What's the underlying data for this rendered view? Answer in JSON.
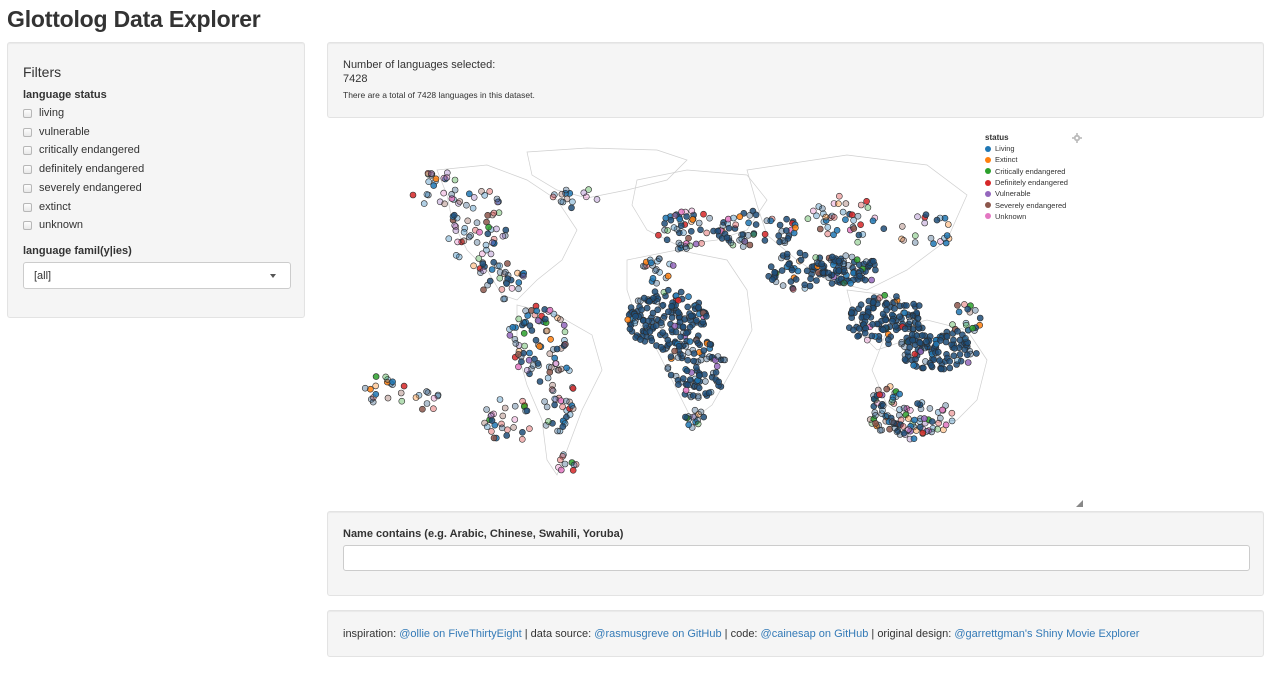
{
  "app": {
    "title": "Glottolog Data Explorer"
  },
  "filters": {
    "title": "Filters",
    "status_label": "language status",
    "status_options": [
      {
        "label": "living",
        "checked": false
      },
      {
        "label": "vulnerable",
        "checked": false
      },
      {
        "label": "critically endangered",
        "checked": false
      },
      {
        "label": "definitely endangered",
        "checked": false
      },
      {
        "label": "severely endangered",
        "checked": false
      },
      {
        "label": "extinct",
        "checked": false
      },
      {
        "label": "unknown",
        "checked": false
      }
    ],
    "family_label": "language famil(y|ies)",
    "family_selected": "[all]"
  },
  "summary": {
    "count_label": "Number of languages selected:",
    "count_value": "7428",
    "total_note": "There are a total of 7428 languages in this dataset."
  },
  "legend": {
    "title": "status",
    "items": [
      {
        "label": "Living",
        "color": "#1f77b4"
      },
      {
        "label": "Extinct",
        "color": "#ff7f0e"
      },
      {
        "label": "Critically endangered",
        "color": "#2ca02c"
      },
      {
        "label": "Definitely endangered",
        "color": "#d62728"
      },
      {
        "label": "Vulnerable",
        "color": "#9467bd"
      },
      {
        "label": "Severely endangered",
        "color": "#8c564b"
      },
      {
        "label": "Unknown",
        "color": "#e377c2"
      }
    ]
  },
  "search": {
    "label": "Name contains (e.g. Arabic, Chinese, Swahili, Yoruba)",
    "value": "",
    "placeholder": ""
  },
  "footer": {
    "inspiration_prefix": "inspiration: ",
    "inspiration_link": "@ollie on FiveThirtyEight",
    "data_prefix": " | data source: ",
    "data_link": "@rasmusgreve on GitHub",
    "code_prefix": " | code: ",
    "code_link": "@cainesap on GitHub",
    "design_prefix": " | original design: ",
    "design_link": "@garrettgman's Shiny Movie Explorer"
  }
}
